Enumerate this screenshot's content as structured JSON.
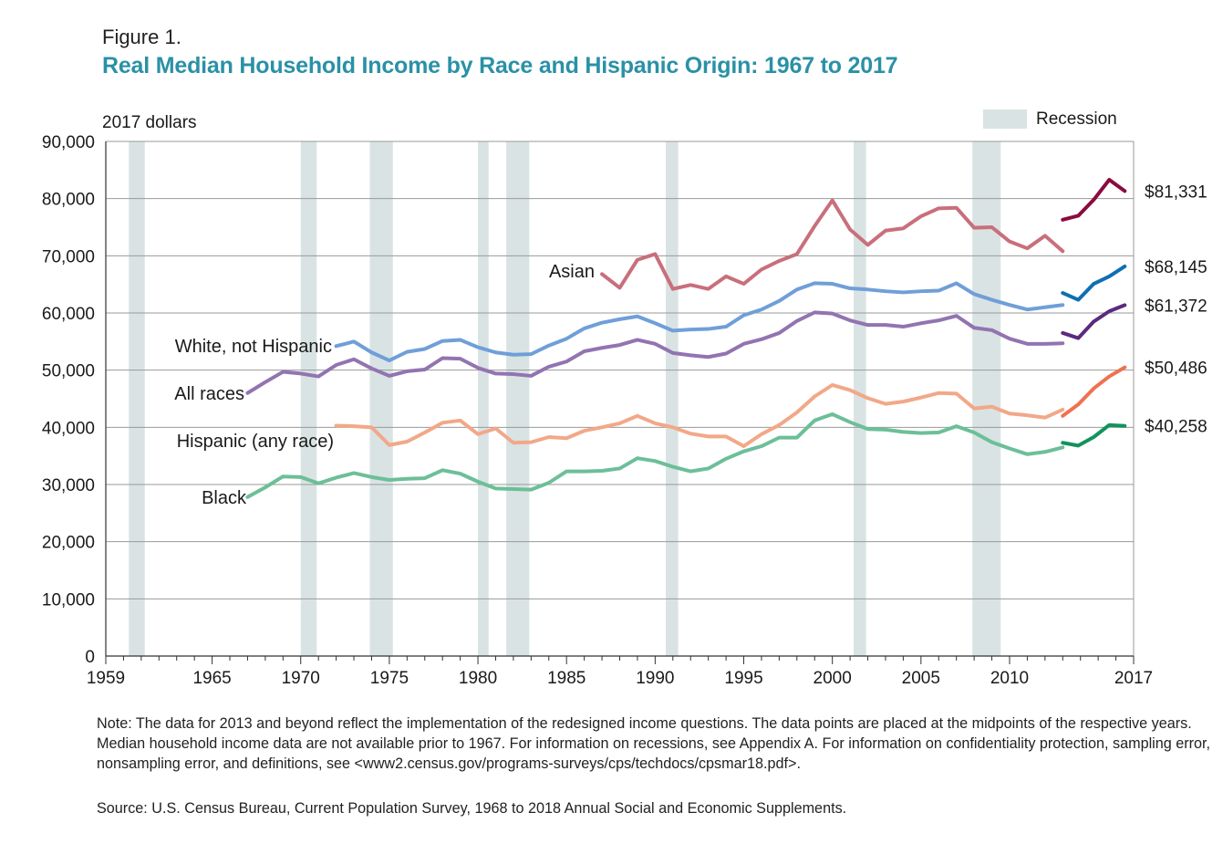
{
  "figure": {
    "label": "Figure 1.",
    "title": "Real Median Household Income by Race and Hispanic Origin: 1967 to 2017",
    "note": "Note: The data for 2013 and beyond reflect the implementation of the redesigned income questions. The data points are placed at the midpoints of the respective years. Median household income data are not available prior to 1967. For information on recessions, see Appendix A. For information on confidentiality protection, sampling error, nonsampling error, and definitions, see <www2.census.gov/programs-surveys/cps/techdocs/cpsmar18.pdf>.",
    "source": "Source: U.S. Census Bureau, Current Population Survey, 1968 to 2018 Annual Social and Economic Supplements."
  },
  "colors": {
    "recession": "#d9e3e4",
    "grid": "#9a9a9a",
    "axis": "#333333",
    "title": "#2a91a6"
  },
  "chart_data": {
    "type": "line",
    "ylabel": "2017 dollars",
    "legend": {
      "label": "Recession",
      "position": "top-right"
    },
    "xlim": [
      1959,
      2017
    ],
    "ylim": [
      0,
      90000
    ],
    "x_ticks": [
      1959,
      1965,
      1970,
      1975,
      1980,
      1985,
      1990,
      1995,
      2000,
      2005,
      2010,
      2017
    ],
    "y_ticks": [
      0,
      10000,
      20000,
      30000,
      40000,
      50000,
      60000,
      70000,
      80000,
      90000
    ],
    "y_tick_labels": [
      "0",
      "10,000",
      "20,000",
      "30,000",
      "40,000",
      "50,000",
      "60,000",
      "70,000",
      "80,000",
      "90,000"
    ],
    "recessions": [
      [
        1960.3,
        1961.2
      ],
      [
        1970.0,
        1970.9
      ],
      [
        1973.9,
        1975.2
      ],
      [
        1980.0,
        1980.6
      ],
      [
        1981.6,
        1982.9
      ],
      [
        1990.6,
        1991.3
      ],
      [
        2001.2,
        2001.9
      ],
      [
        2007.9,
        2009.5
      ]
    ],
    "series": [
      {
        "name": "Asian",
        "color": "#c96f7b",
        "new_color": "#8b0b3f",
        "end_label": "$81,331",
        "x": [
          1987,
          1988,
          1989,
          1990,
          1991,
          1992,
          1993,
          1994,
          1995,
          1996,
          1997,
          1998,
          1999,
          2000,
          2001,
          2002,
          2003,
          2004,
          2005,
          2006,
          2007,
          2008,
          2009,
          2010,
          2011,
          2012,
          2013
        ],
        "y": [
          66800,
          64400,
          69300,
          70300,
          64200,
          64900,
          64200,
          66400,
          65100,
          67600,
          69100,
          70300,
          75200,
          79700,
          74600,
          71900,
          74400,
          74800,
          76900,
          78300,
          78400,
          74900,
          75000,
          72500,
          71300,
          73500,
          70800
        ],
        "new_x": [
          2013,
          2014,
          2015,
          2016,
          2017
        ],
        "new_y": [
          76300,
          77000,
          79800,
          83300,
          81331
        ]
      },
      {
        "name": "White, not Hispanic",
        "color": "#6f9fd8",
        "new_color": "#0e6fb3",
        "end_label": "$68,145",
        "x": [
          1972,
          1973,
          1974,
          1975,
          1976,
          1977,
          1978,
          1979,
          1980,
          1981,
          1982,
          1983,
          1984,
          1985,
          1986,
          1987,
          1988,
          1989,
          1990,
          1991,
          1992,
          1993,
          1994,
          1995,
          1996,
          1997,
          1998,
          1999,
          2000,
          2001,
          2002,
          2003,
          2004,
          2005,
          2006,
          2007,
          2008,
          2009,
          2010,
          2011,
          2012,
          2013
        ],
        "y": [
          54200,
          55000,
          53100,
          51700,
          53200,
          53700,
          55100,
          55300,
          54000,
          53100,
          52700,
          52800,
          54300,
          55500,
          57300,
          58300,
          58900,
          59400,
          58200,
          56900,
          57100,
          57200,
          57600,
          59600,
          60600,
          62100,
          64100,
          65200,
          65100,
          64300,
          64100,
          63800,
          63600,
          63800,
          63900,
          65200,
          63300,
          62300,
          61400,
          60600,
          61000,
          61400
        ],
        "new_x": [
          2013,
          2014,
          2015,
          2016,
          2017
        ],
        "new_y": [
          63500,
          62300,
          65100,
          66400,
          68145
        ]
      },
      {
        "name": "All races",
        "color": "#9274b0",
        "new_color": "#5b2a7e",
        "end_label": "$61,372",
        "x": [
          1967,
          1968,
          1969,
          1970,
          1971,
          1972,
          1973,
          1974,
          1975,
          1976,
          1977,
          1978,
          1979,
          1980,
          1981,
          1982,
          1983,
          1984,
          1985,
          1986,
          1987,
          1988,
          1989,
          1990,
          1991,
          1992,
          1993,
          1994,
          1995,
          1996,
          1997,
          1998,
          1999,
          2000,
          2001,
          2002,
          2003,
          2004,
          2005,
          2006,
          2007,
          2008,
          2009,
          2010,
          2011,
          2012,
          2013
        ],
        "y": [
          46000,
          47900,
          49700,
          49400,
          48900,
          50900,
          51900,
          50300,
          49000,
          49800,
          50100,
          52100,
          52000,
          50400,
          49400,
          49300,
          49000,
          50600,
          51500,
          53300,
          53900,
          54400,
          55300,
          54600,
          53000,
          52600,
          52300,
          52900,
          54600,
          55400,
          56500,
          58600,
          60100,
          59900,
          58700,
          57900,
          57900,
          57600,
          58200,
          58700,
          59500,
          57400,
          57000,
          55500,
          54600,
          54600,
          54700
        ],
        "new_x": [
          2013,
          2014,
          2015,
          2016,
          2017
        ],
        "new_y": [
          56500,
          55600,
          58500,
          60300,
          61372
        ]
      },
      {
        "name": "Hispanic (any race)",
        "color": "#f2a888",
        "new_color": "#ef7150",
        "end_label": "$50,486",
        "x": [
          1972,
          1973,
          1974,
          1975,
          1976,
          1977,
          1978,
          1979,
          1980,
          1981,
          1982,
          1983,
          1984,
          1985,
          1986,
          1987,
          1988,
          1989,
          1990,
          1991,
          1992,
          1993,
          1994,
          1995,
          1996,
          1997,
          1998,
          1999,
          2000,
          2001,
          2002,
          2003,
          2004,
          2005,
          2006,
          2007,
          2008,
          2009,
          2010,
          2011,
          2012,
          2013
        ],
        "y": [
          40300,
          40200,
          40000,
          36900,
          37500,
          39100,
          40800,
          41200,
          38800,
          39800,
          37300,
          37400,
          38300,
          38100,
          39400,
          40000,
          40700,
          42000,
          40700,
          40000,
          38900,
          38400,
          38400,
          36700,
          38800,
          40400,
          42600,
          45400,
          47400,
          46500,
          45100,
          44100,
          44500,
          45200,
          46000,
          45900,
          43300,
          43600,
          42400,
          42100,
          41700,
          43100
        ],
        "new_x": [
          2013,
          2014,
          2015,
          2016,
          2017
        ],
        "new_y": [
          42000,
          44000,
          46800,
          48900,
          50486
        ]
      },
      {
        "name": "Black",
        "color": "#6cbf98",
        "new_color": "#12935c",
        "end_label": "$40,258",
        "x": [
          1967,
          1968,
          1969,
          1970,
          1971,
          1972,
          1973,
          1974,
          1975,
          1976,
          1977,
          1978,
          1979,
          1980,
          1981,
          1982,
          1983,
          1984,
          1985,
          1986,
          1987,
          1988,
          1989,
          1990,
          1991,
          1992,
          1993,
          1994,
          1995,
          1996,
          1997,
          1998,
          1999,
          2000,
          2001,
          2002,
          2003,
          2004,
          2005,
          2006,
          2007,
          2008,
          2009,
          2010,
          2011,
          2012,
          2013
        ],
        "y": [
          27800,
          29500,
          31400,
          31300,
          30200,
          31200,
          32000,
          31300,
          30800,
          31000,
          31100,
          32500,
          31900,
          30500,
          29300,
          29200,
          29100,
          30300,
          32300,
          32300,
          32400,
          32800,
          34600,
          34100,
          33100,
          32300,
          32800,
          34500,
          35800,
          36700,
          38200,
          38200,
          41200,
          42300,
          40900,
          39700,
          39600,
          39200,
          39000,
          39100,
          40200,
          39100,
          37400,
          36300,
          35300,
          35700,
          36500
        ],
        "new_x": [
          2013,
          2014,
          2015,
          2016,
          2017
        ],
        "new_y": [
          37300,
          36800,
          38300,
          40400,
          40258
        ]
      }
    ]
  }
}
